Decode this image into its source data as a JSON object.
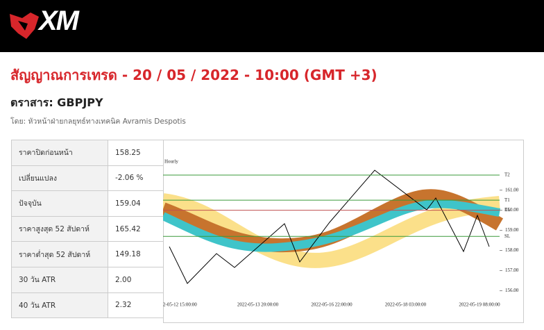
{
  "header": {
    "logo": "XM"
  },
  "title": "สัญญาณการเทรด - 20 / 05 / 2022 - 10:00 (GMT +3)",
  "instrument": "ตราสาร: GBPJPY",
  "author": "โดย: หัวหน้าฝ่ายกลยุทธ์ทางเทคนิค Avramis Despotis",
  "table": {
    "rows": [
      [
        "ราคาปิดก่อนหน้า",
        "158.25"
      ],
      [
        "เปลี่ยนแปลง",
        "-2.06 %"
      ],
      [
        "ปัจจุบัน",
        "159.04"
      ],
      [
        "ราคาสูงสุด 52 สัปดาห์",
        "165.42"
      ],
      [
        "ราคาต่ำสุด 52 สัปดาห์",
        "149.18"
      ],
      [
        "30 วัน ATR",
        "2.00"
      ],
      [
        "40 วัน ATR",
        "2.32"
      ]
    ]
  },
  "chart_data": {
    "type": "levels",
    "title": "Hourly",
    "ylim": [
      155.6,
      163.2
    ],
    "yticks": [
      {
        "value": 156,
        "label": "156.00"
      },
      {
        "value": 157,
        "label": "157.00"
      },
      {
        "value": 158,
        "label": "158.00"
      },
      {
        "value": 159,
        "label": "159.00"
      },
      {
        "value": 160,
        "label": "160.00"
      },
      {
        "value": 161,
        "label": "161.00"
      }
    ],
    "xtick_labels": [
      "2-05-12 15:00:00",
      "2022-05-13 20:00:00",
      "2022-05-16 22:00:00",
      "2022-05-18 03:00:00",
      "2022-05-19 08:00:00"
    ],
    "levels": [
      {
        "name": "T2",
        "value": 161.75,
        "color": "#3a9a3a"
      },
      {
        "name": "T1",
        "value": 160.5,
        "color": "#3a9a3a"
      },
      {
        "name": "EL",
        "value": 160.0,
        "color": "#c05050"
      },
      {
        "name": "SL",
        "value": 158.7,
        "color": "#3a9a3a"
      }
    ]
  }
}
